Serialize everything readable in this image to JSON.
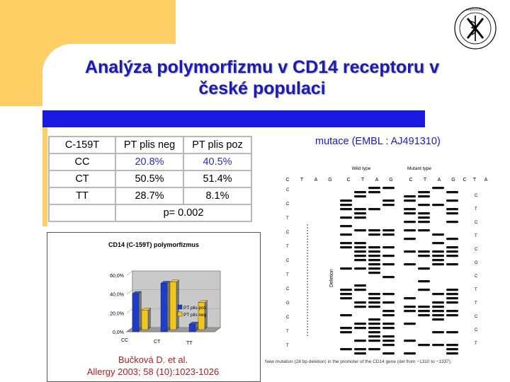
{
  "slide": {
    "title_line1": "Analýza polymorfizmu v CD14 receptoru v",
    "title_line2": "české populaci",
    "accent_color": "#fdcf65",
    "bar_color": "#1a1ae0",
    "title_color": "#1c1cb4"
  },
  "table": {
    "headers": [
      "C-159T",
      "PT plis neg",
      "PT plis poz"
    ],
    "rows": [
      [
        "CC",
        "20.8%",
        "40.5%"
      ],
      [
        "CT",
        "50.5%",
        "51.4%"
      ],
      [
        "TT",
        "28.7%",
        "8.1%"
      ]
    ],
    "p_value": "p= 0.002"
  },
  "mutation": {
    "label": "mutace (EMBL : AJ491310)"
  },
  "chart_data": {
    "type": "bar",
    "title": "CD14 (C-159T) polymorfizmus",
    "categories": [
      "CC",
      "CT",
      "TT"
    ],
    "y_tick_labels": [
      "60,0%",
      "40,0%",
      "20,0%",
      "0,0%"
    ],
    "ylim": [
      0,
      60
    ],
    "series": [
      {
        "name": "PT plis poz",
        "values": [
          40.5,
          51.4,
          8.1
        ],
        "color": "#1e3cc8"
      },
      {
        "name": "PT plis neg",
        "values": [
          20.8,
          50.5,
          28.7
        ],
        "color": "#f2c81e"
      }
    ]
  },
  "citation": {
    "line1": "Bučková D. et al.",
    "line2": "Allergy 2003; 58 (10):1023-1026"
  },
  "gel": {
    "wild_label": "Wild type",
    "mutant_label": "Mutant type",
    "deletion_label": "Deletion",
    "lane_letters": [
      "C",
      "T",
      "A",
      "G",
      "C",
      "T",
      "A",
      "G",
      "C",
      "T",
      "A",
      "G",
      "C",
      "T",
      "A"
    ],
    "caption": "New mutation (28 bp deletion) in the promoter of the CD14 gene (del from −1310 to −1337)."
  }
}
